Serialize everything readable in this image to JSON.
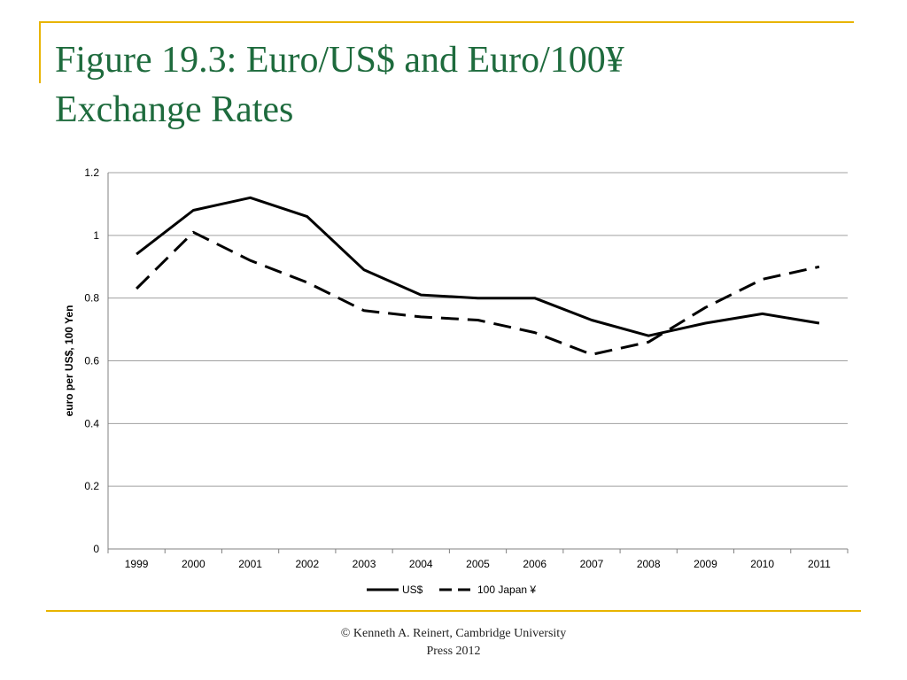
{
  "slide": {
    "title_line1": "Figure 19.3: Euro/US$ and Euro/100¥",
    "title_line2": "Exchange Rates",
    "footer_line1": "© Kenneth A. Reinert, Cambridge University",
    "footer_line2": "Press 2012",
    "colors": {
      "title": "#1e6b3d",
      "accent_rule": "#e8b400",
      "series": "#000000",
      "grid": "#a0a0a0"
    }
  },
  "chart_data": {
    "type": "line",
    "title": "",
    "xlabel": "",
    "ylabel": "euro per US$, 100 Yen",
    "ylim": [
      0,
      1.2
    ],
    "yticks": [
      "0",
      "0.2",
      "0.4",
      "0.6",
      "0.8",
      "1",
      "1.2"
    ],
    "categories": [
      "1999",
      "2000",
      "2001",
      "2002",
      "2003",
      "2004",
      "2005",
      "2006",
      "2007",
      "2008",
      "2009",
      "2010",
      "2011"
    ],
    "grid": true,
    "legend_position": "bottom",
    "series": [
      {
        "name": "US$",
        "style": "solid",
        "values": [
          0.94,
          1.08,
          1.12,
          1.06,
          0.89,
          0.81,
          0.8,
          0.8,
          0.73,
          0.68,
          0.72,
          0.75,
          0.72
        ]
      },
      {
        "name": "100 Japan ¥",
        "style": "dashed",
        "values": [
          0.83,
          1.01,
          0.92,
          0.85,
          0.76,
          0.74,
          0.73,
          0.69,
          0.62,
          0.66,
          0.77,
          0.86,
          0.9
        ]
      }
    ]
  }
}
